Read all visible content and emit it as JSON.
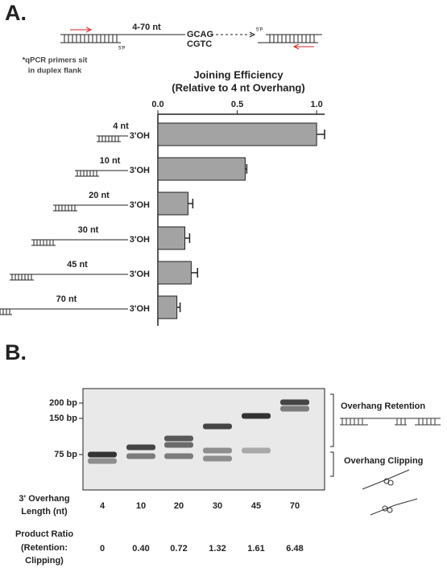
{
  "panel_a_label": "A.",
  "schematic": {
    "length_label": "4-70 nt",
    "top_seq": "GCAG",
    "bottom_seq": "CGTC",
    "phosphate": "5'P",
    "note_line1": "*qPCR primers sit",
    "note_line2": "in duplex flank"
  },
  "chart_data": {
    "type": "hbar",
    "title": "Joining Efficiency",
    "subtitle": "(Relative to 4 nt Overhang)",
    "categories": [
      "4 nt",
      "10 nt",
      "20 nt",
      "30 nt",
      "45 nt",
      "70 nt"
    ],
    "end_label": "3'OH",
    "values": [
      1.0,
      0.55,
      0.19,
      0.17,
      0.21,
      0.12
    ],
    "errors": [
      0.05,
      0.01,
      0.03,
      0.03,
      0.04,
      0.02
    ],
    "color": "#a3a3a3",
    "xlim": [
      0,
      1.05
    ],
    "xticks": [
      {
        "value": 0,
        "label": "0.0"
      },
      {
        "value": 0.5,
        "label": "0.5"
      },
      {
        "value": 1,
        "label": "1.0"
      }
    ]
  },
  "panel_b": {
    "label": "B.",
    "markers": [
      "200 bp",
      "150 bp",
      "75 bp"
    ],
    "retention_label": "Overhang Retention",
    "clipping_label": "Overhang Clipping",
    "length_header": [
      "3' Overhang",
      "Length (nt)"
    ],
    "lengths": [
      "4",
      "10",
      "20",
      "30",
      "45",
      "70"
    ],
    "ratio_header": [
      "Product Ratio",
      "(Retention:",
      "Clipping)"
    ],
    "ratios": [
      "0",
      "0.40",
      "0.72",
      "1.32",
      "1.61",
      "6.48"
    ]
  }
}
